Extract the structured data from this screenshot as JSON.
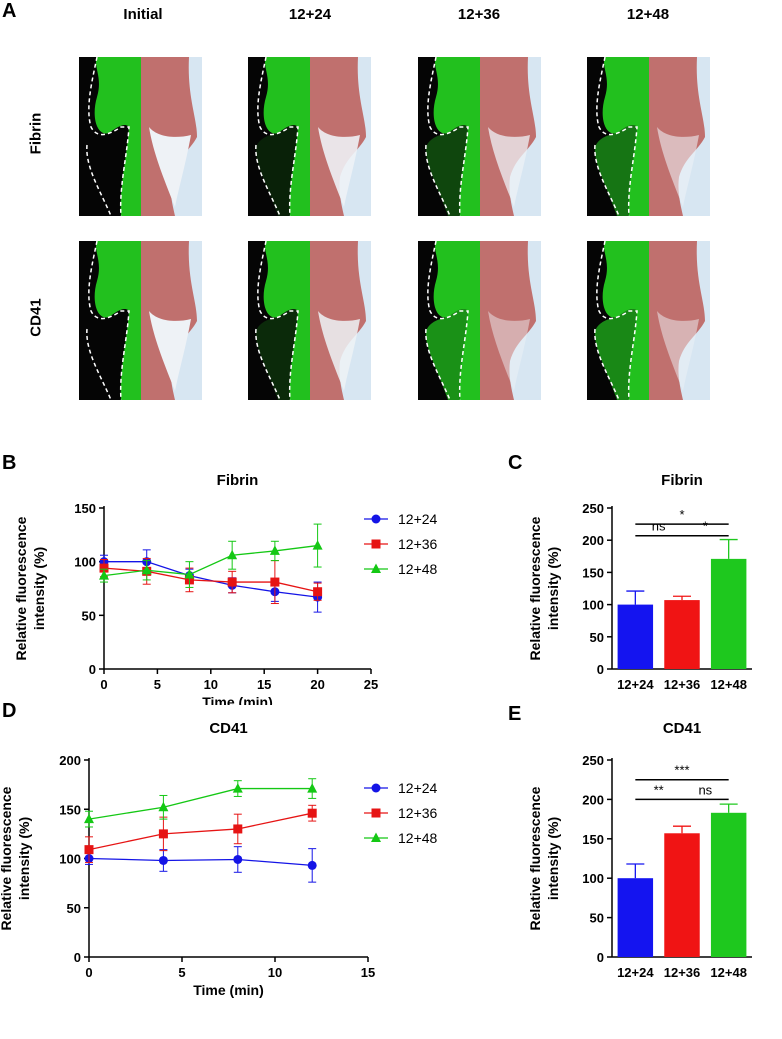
{
  "panel_labels": {
    "A": "A",
    "B": "B",
    "C": "C",
    "D": "D",
    "E": "E"
  },
  "panel_a": {
    "columns": [
      "Initial",
      "12+24",
      "12+36",
      "12+48"
    ],
    "rows": [
      "Fibrin",
      "CD41"
    ],
    "colors": {
      "green": "#22c01e",
      "black": "#050505",
      "red": "#c0706e",
      "dash": "#ffffff"
    },
    "signal_levels": [
      [
        0,
        0.15,
        0.35,
        0.6
      ],
      [
        0,
        0.2,
        0.75,
        0.7
      ]
    ]
  },
  "chart_data": [
    {
      "id": "B",
      "type": "line",
      "title": "Fibrin",
      "xlabel": "Time (min)",
      "ylabel": "Relative fluorescence intensity (%)",
      "xlim": [
        0,
        25
      ],
      "ylim": [
        0,
        150
      ],
      "xticks": [
        "0",
        "5",
        "10",
        "15",
        "20",
        "25"
      ],
      "yticks": [
        "0",
        "50",
        "100",
        "150"
      ],
      "series": [
        {
          "name": "12+24",
          "color": "#1414e6",
          "marker": "circle",
          "x": [
            0,
            4,
            8,
            12,
            16,
            20
          ],
          "values": [
            100,
            100,
            87,
            78,
            72,
            67
          ],
          "err": [
            6,
            11,
            6,
            7,
            9,
            14
          ]
        },
        {
          "name": "12+36",
          "color": "#e61414",
          "marker": "square",
          "x": [
            0,
            4,
            8,
            12,
            16,
            20
          ],
          "values": [
            94,
            91,
            83,
            81,
            81,
            72
          ],
          "err": [
            8,
            12,
            11,
            10,
            20,
            8
          ]
        },
        {
          "name": "12+48",
          "color": "#14c814",
          "marker": "triangle",
          "x": [
            0,
            4,
            8,
            12,
            16,
            20
          ],
          "values": [
            87,
            92,
            88,
            106,
            110,
            115
          ],
          "err": [
            6,
            9,
            12,
            13,
            9,
            20
          ]
        }
      ]
    },
    {
      "id": "C",
      "type": "bar",
      "title": "Fibrin",
      "ylabel": "Relative fluorescence intensity (%)",
      "ylim": [
        0,
        250
      ],
      "yticks": [
        "0",
        "50",
        "100",
        "150",
        "200",
        "250"
      ],
      "categories": [
        "12+24",
        "12+36",
        "12+48"
      ],
      "values": [
        100,
        107,
        171
      ],
      "err": [
        21,
        6,
        30
      ],
      "colors": [
        "#1414f0",
        "#f01414",
        "#1ec81e"
      ],
      "brackets": [
        {
          "from": 0,
          "to": 2,
          "level": 225,
          "label": "*"
        },
        {
          "from": 0,
          "to": 1,
          "level": 207,
          "label": "ns"
        },
        {
          "from": 1,
          "to": 2,
          "level": 207,
          "label": "*"
        }
      ]
    },
    {
      "id": "D",
      "type": "line",
      "title": "CD41",
      "xlabel": "Time (min)",
      "ylabel": "Relative fluorescence intensity (%)",
      "xlim": [
        0,
        15
      ],
      "ylim": [
        0,
        200
      ],
      "xticks": [
        "0",
        "5",
        "10",
        "15"
      ],
      "yticks": [
        "0",
        "50",
        "100",
        "150",
        "200"
      ],
      "series": [
        {
          "name": "12+24",
          "color": "#1414e6",
          "marker": "circle",
          "x": [
            0,
            4,
            8,
            12
          ],
          "values": [
            100,
            98,
            99,
            93
          ],
          "err": [
            6,
            11,
            13,
            17
          ]
        },
        {
          "name": "12+36",
          "color": "#e61414",
          "marker": "square",
          "x": [
            0,
            4,
            8,
            12
          ],
          "values": [
            109,
            125,
            130,
            146
          ],
          "err": [
            13,
            17,
            15,
            8
          ]
        },
        {
          "name": "12+48",
          "color": "#14c814",
          "marker": "triangle",
          "x": [
            0,
            4,
            8,
            12
          ],
          "values": [
            140,
            152,
            171,
            171
          ],
          "err": [
            8,
            12,
            8,
            10
          ]
        }
      ]
    },
    {
      "id": "E",
      "type": "bar",
      "title": "CD41",
      "ylabel": "Relative fluorescence intensity (%)",
      "ylim": [
        0,
        250
      ],
      "yticks": [
        "0",
        "50",
        "100",
        "150",
        "200",
        "250"
      ],
      "categories": [
        "12+24",
        "12+36",
        "12+48"
      ],
      "values": [
        100,
        157,
        183
      ],
      "err": [
        18,
        9,
        11
      ],
      "colors": [
        "#1414f0",
        "#f01414",
        "#1ec81e"
      ],
      "brackets": [
        {
          "from": 0,
          "to": 2,
          "level": 225,
          "label": "***"
        },
        {
          "from": 0,
          "to": 1,
          "level": 200,
          "label": "**"
        },
        {
          "from": 1,
          "to": 2,
          "level": 200,
          "label": "ns"
        }
      ]
    }
  ]
}
